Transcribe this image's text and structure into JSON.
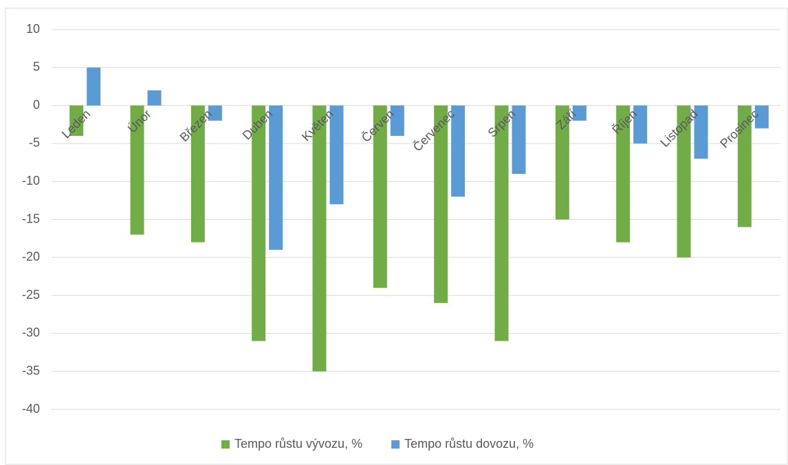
{
  "chart_data": {
    "type": "bar",
    "categories": [
      "Leden",
      "Únor",
      "Březen",
      "Duben",
      "Květen",
      "Červen",
      "Červenec",
      "Srpen",
      "Září",
      "Říjen",
      "Listopad",
      "Prosinec"
    ],
    "series": [
      {
        "name": "Tempo růstu vývozu, %",
        "color": "#70ad47",
        "values": [
          -4,
          -17,
          -18,
          -31,
          -35,
          -24,
          -26,
          -31,
          -15,
          -18,
          -20,
          -16
        ]
      },
      {
        "name": "Tempo růstu dovozu, %",
        "color": "#5b9bd5",
        "values": [
          5,
          2,
          -2,
          -19,
          -13,
          -4,
          -12,
          -9,
          -2,
          -5,
          -7,
          -3
        ]
      }
    ],
    "ylim": [
      -40,
      10
    ],
    "yticks": [
      -40,
      -35,
      -30,
      -25,
      -20,
      -15,
      -10,
      -5,
      0,
      5,
      10
    ],
    "grid": true,
    "legend": "bottom"
  }
}
